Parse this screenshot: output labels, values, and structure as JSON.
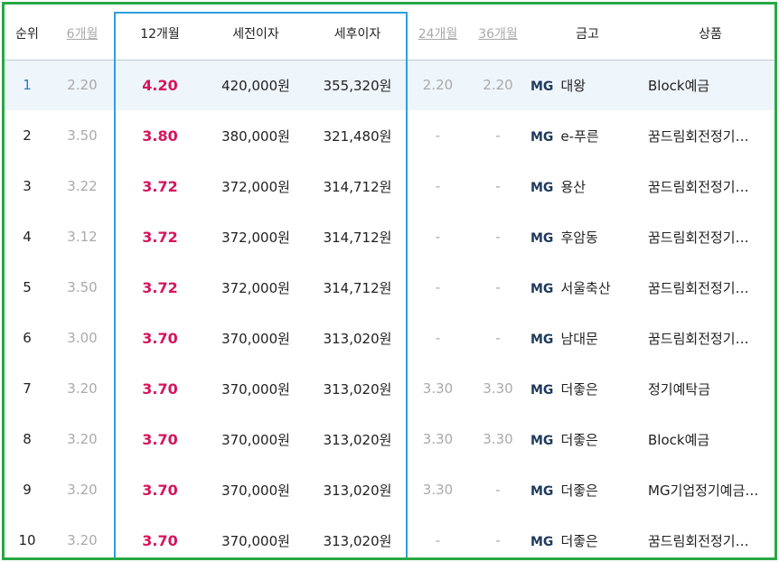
{
  "headers": {
    "rank": "순위",
    "m6": "6개월",
    "m12": "12개월",
    "pre_tax": "세전이자",
    "post_tax": "세후이자",
    "m24": "24개월",
    "m36": "36개월",
    "bank": "금고",
    "product": "상품"
  },
  "rows": [
    {
      "rank": "1",
      "m6": "2.20",
      "m12": "4.20",
      "pre": "420,000원",
      "post": "355,320원",
      "m24": "2.20",
      "m36": "2.20",
      "mg": "MG",
      "bank": "대왕",
      "product": "Block예금"
    },
    {
      "rank": "2",
      "m6": "3.50",
      "m12": "3.80",
      "pre": "380,000원",
      "post": "321,480원",
      "m24": "-",
      "m36": "-",
      "mg": "MG",
      "bank": "e-푸른",
      "product": "꿈드림회전정기…"
    },
    {
      "rank": "3",
      "m6": "3.22",
      "m12": "3.72",
      "pre": "372,000원",
      "post": "314,712원",
      "m24": "-",
      "m36": "-",
      "mg": "MG",
      "bank": "용산",
      "product": "꿈드림회전정기…"
    },
    {
      "rank": "4",
      "m6": "3.12",
      "m12": "3.72",
      "pre": "372,000원",
      "post": "314,712원",
      "m24": "-",
      "m36": "-",
      "mg": "MG",
      "bank": "후암동",
      "product": "꿈드림회전정기…"
    },
    {
      "rank": "5",
      "m6": "3.50",
      "m12": "3.72",
      "pre": "372,000원",
      "post": "314,712원",
      "m24": "-",
      "m36": "-",
      "mg": "MG",
      "bank": "서울축산",
      "product": "꿈드림회전정기…"
    },
    {
      "rank": "6",
      "m6": "3.00",
      "m12": "3.70",
      "pre": "370,000원",
      "post": "313,020원",
      "m24": "-",
      "m36": "-",
      "mg": "MG",
      "bank": "남대문",
      "product": "꿈드림회전정기…"
    },
    {
      "rank": "7",
      "m6": "3.20",
      "m12": "3.70",
      "pre": "370,000원",
      "post": "313,020원",
      "m24": "3.30",
      "m36": "3.30",
      "mg": "MG",
      "bank": "더좋은",
      "product": "정기예탁금"
    },
    {
      "rank": "8",
      "m6": "3.20",
      "m12": "3.70",
      "pre": "370,000원",
      "post": "313,020원",
      "m24": "3.30",
      "m36": "3.30",
      "mg": "MG",
      "bank": "더좋은",
      "product": "Block예금"
    },
    {
      "rank": "9",
      "m6": "3.20",
      "m12": "3.70",
      "pre": "370,000원",
      "post": "313,020원",
      "m24": "3.30",
      "m36": "-",
      "mg": "MG",
      "bank": "더좋은",
      "product": "MG기업정기예금…"
    },
    {
      "rank": "10",
      "m6": "3.20",
      "m12": "3.70",
      "pre": "370,000원",
      "post": "313,020원",
      "m24": "-",
      "m36": "-",
      "mg": "MG",
      "bank": "더좋은",
      "product": "꿈드림회전정기…"
    }
  ],
  "colors": {
    "frame": "#27a844",
    "highlight_column": "#2f9ee0",
    "rate_12m": "#d6145f",
    "first_row_bg": "#eef5fb"
  }
}
